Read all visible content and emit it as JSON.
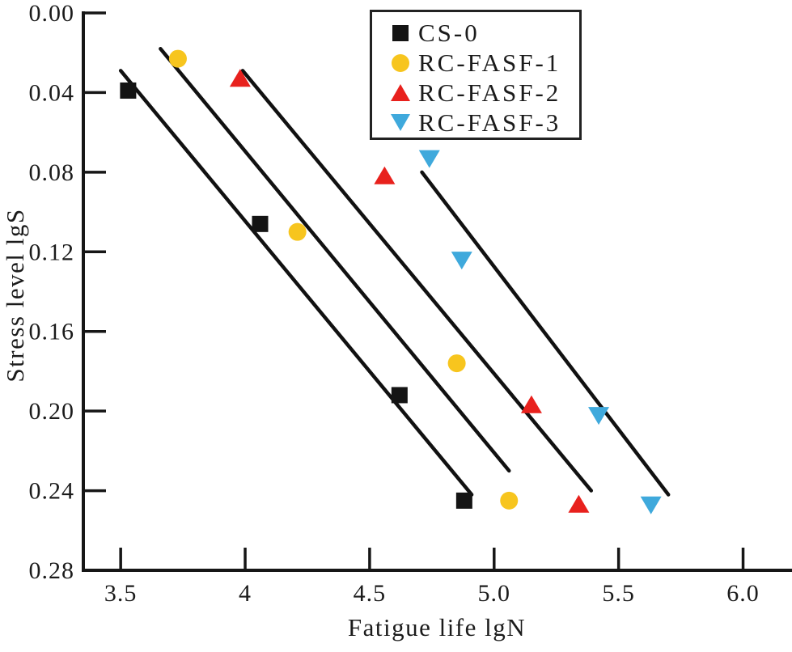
{
  "colors": {
    "text": "#1b1b1b",
    "axis": "#161616",
    "trend_line": "#111111",
    "background": "#ffffff",
    "series_black": "#141414",
    "series_yellow": "#F7C51E",
    "series_red": "#E8211D",
    "series_blue": "#3FA9DC"
  },
  "chart_data": {
    "type": "scatter",
    "title": "",
    "xlabel": "Fatigue life lgN",
    "ylabel": "Stress level lgS",
    "xlim": [
      3.35,
      6.19
    ],
    "ylim": [
      0,
      0.28
    ],
    "y_inverted": true,
    "grid": false,
    "legend_position": "top-center-inside",
    "x_ticks": [
      {
        "value": 3.5,
        "label": "3.5"
      },
      {
        "value": 4.0,
        "label": "4"
      },
      {
        "value": 4.5,
        "label": "4.5"
      },
      {
        "value": 5.0,
        "label": "5.0"
      },
      {
        "value": 5.5,
        "label": "5.5"
      },
      {
        "value": 6.0,
        "label": "6.0"
      }
    ],
    "y_ticks": [
      {
        "value": 0.0,
        "label": "0.00"
      },
      {
        "value": 0.04,
        "label": "0.04"
      },
      {
        "value": 0.08,
        "label": "0.08"
      },
      {
        "value": 0.12,
        "label": "0.12"
      },
      {
        "value": 0.16,
        "label": "0.16"
      },
      {
        "value": 0.2,
        "label": "0.20"
      },
      {
        "value": 0.24,
        "label": "0.24"
      },
      {
        "value": 0.28,
        "label": "0.28"
      }
    ],
    "series": [
      {
        "name": "CS-0",
        "marker": "square",
        "color": "#141414",
        "points": [
          [
            3.53,
            0.039
          ],
          [
            4.06,
            0.106
          ],
          [
            4.62,
            0.192
          ],
          [
            4.88,
            0.245
          ]
        ],
        "trend_line": {
          "x1": 3.5,
          "y1": 0.029,
          "x2": 4.91,
          "y2": 0.242
        }
      },
      {
        "name": "RC-FASF-1",
        "marker": "circle",
        "color": "#F7C51E",
        "points": [
          [
            3.73,
            0.023
          ],
          [
            4.21,
            0.11
          ],
          [
            4.85,
            0.176
          ],
          [
            5.06,
            0.245
          ]
        ],
        "trend_line": {
          "x1": 3.66,
          "y1": 0.018,
          "x2": 5.06,
          "y2": 0.23
        }
      },
      {
        "name": "RC-FASF-2",
        "marker": "triangle-up",
        "color": "#E8211D",
        "points": [
          [
            3.98,
            0.033
          ],
          [
            4.56,
            0.082
          ],
          [
            5.15,
            0.197
          ],
          [
            5.34,
            0.247
          ]
        ],
        "trend_line": {
          "x1": 3.99,
          "y1": 0.029,
          "x2": 5.39,
          "y2": 0.24
        }
      },
      {
        "name": "RC-FASF-3",
        "marker": "triangle-down",
        "color": "#3FA9DC",
        "points": [
          [
            4.74,
            0.073
          ],
          [
            4.87,
            0.124
          ],
          [
            5.42,
            0.202
          ],
          [
            5.63,
            0.247
          ]
        ],
        "trend_line": {
          "x1": 4.71,
          "y1": 0.08,
          "x2": 5.7,
          "y2": 0.242
        }
      }
    ]
  }
}
